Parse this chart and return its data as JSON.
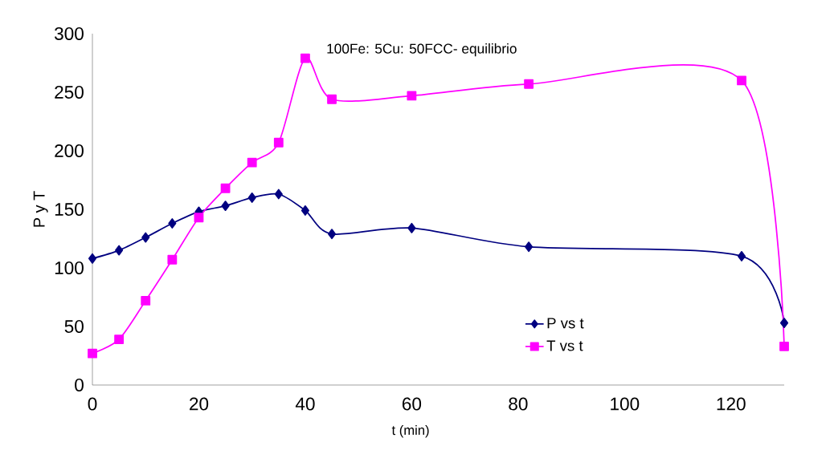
{
  "chart_data": {
    "type": "line",
    "title": "100Fe: 5Cu: 50FCC- equilibrio",
    "xlabel": "t (min)",
    "ylabel": "P y T",
    "x": [
      0,
      5,
      10,
      15,
      20,
      25,
      30,
      35,
      40,
      45,
      60,
      82,
      122,
      130
    ],
    "series": [
      {
        "name": "P vs t",
        "color": "#000080",
        "marker": "diamond",
        "values": [
          108,
          115,
          126,
          138,
          148,
          153,
          160,
          163,
          149,
          129,
          134,
          118,
          110,
          53
        ]
      },
      {
        "name": "T vs t",
        "color": "#ff00ff",
        "marker": "square",
        "values": [
          27,
          39,
          72,
          107,
          143,
          168,
          190,
          207,
          279,
          244,
          247,
          257,
          260,
          33
        ]
      }
    ],
    "xlim": [
      0,
      130
    ],
    "xticks": [
      0,
      20,
      40,
      60,
      80,
      100,
      120
    ],
    "ylim": [
      0,
      300
    ],
    "yticks": [
      0,
      50,
      100,
      150,
      200,
      250,
      300
    ],
    "grid": false,
    "legend": "bottom right"
  }
}
